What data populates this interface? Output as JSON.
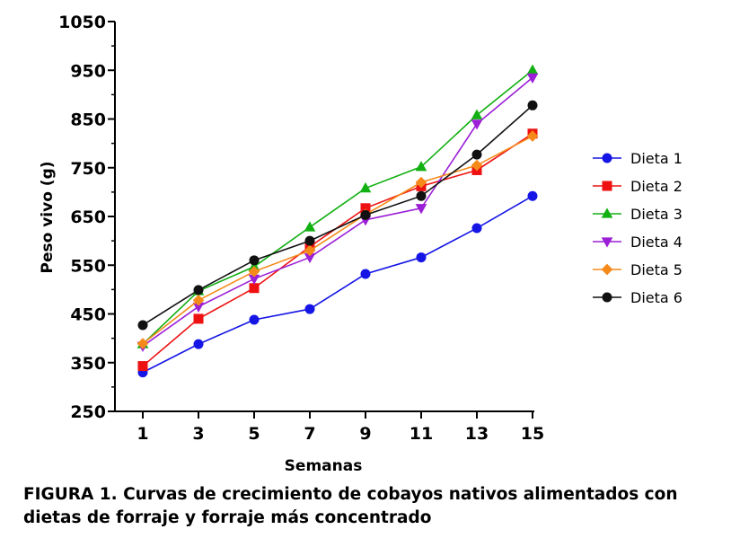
{
  "chart_data": {
    "type": "line",
    "title": "",
    "xlabel": "Semanas",
    "ylabel": "Peso vivo (g)",
    "x": [
      1,
      3,
      5,
      7,
      9,
      11,
      13,
      15
    ],
    "xticks": [
      "1",
      "3",
      "5",
      "7",
      "9",
      "11",
      "13",
      "15"
    ],
    "yticks": [
      "250",
      "350",
      "450",
      "550",
      "650",
      "750",
      "850",
      "950",
      "1050"
    ],
    "ylim": [
      250,
      1050
    ],
    "legend_position": "right",
    "series": [
      {
        "name": "Dieta 1",
        "color": "#1515e6",
        "marker": "circle",
        "values": [
          330,
          388,
          438,
          460,
          532,
          566,
          626,
          692
        ]
      },
      {
        "name": "Dieta 2",
        "color": "#ee1111",
        "marker": "square",
        "values": [
          343,
          440,
          503,
          588,
          667,
          712,
          745,
          820
        ]
      },
      {
        "name": "Dieta 3",
        "color": "#13b013",
        "marker": "triangle-up",
        "values": [
          388,
          497,
          547,
          628,
          708,
          752,
          858,
          950
        ]
      },
      {
        "name": "Dieta 4",
        "color": "#9b1fd6",
        "marker": "triangle-down",
        "values": [
          384,
          465,
          522,
          566,
          643,
          667,
          840,
          935
        ]
      },
      {
        "name": "Dieta 5",
        "color": "#f58a1a",
        "marker": "diamond",
        "values": [
          389,
          478,
          537,
          580,
          654,
          720,
          755,
          815
        ]
      },
      {
        "name": "Dieta 6",
        "color": "#111111",
        "marker": "circle",
        "values": [
          427,
          499,
          560,
          600,
          653,
          692,
          777,
          878
        ]
      }
    ]
  },
  "caption": "FIGURA 1. Curvas de crecimiento de cobayos nativos alimentados con dietas de forraje y forraje más concentrado"
}
